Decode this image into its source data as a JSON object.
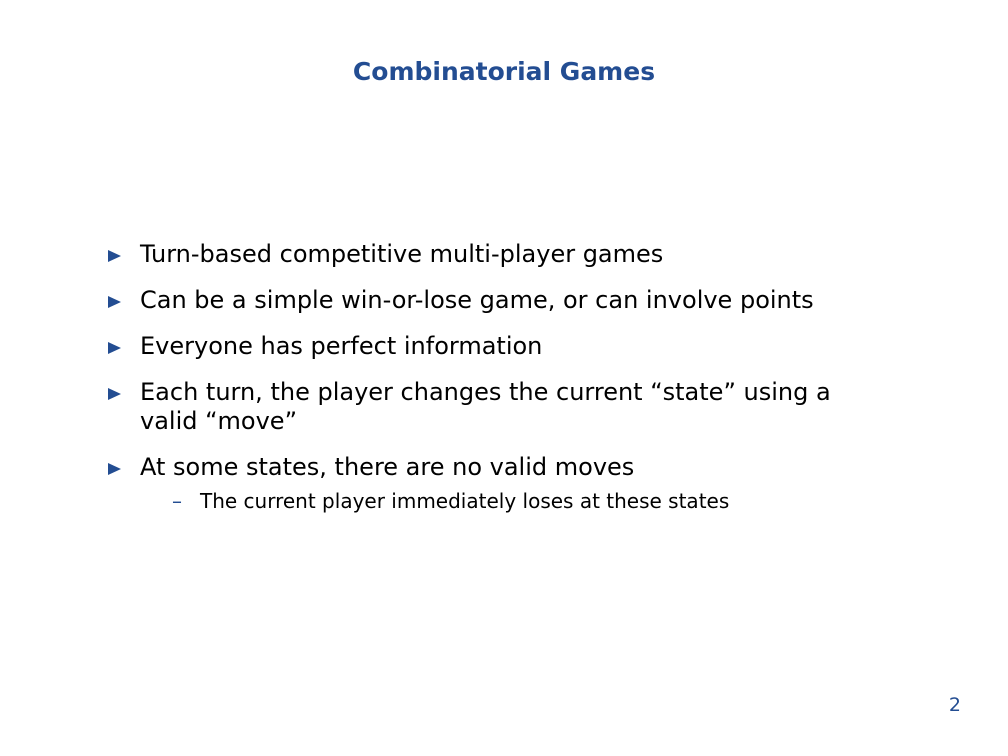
{
  "slide": {
    "title": "Combinatorial Games",
    "bullets": [
      {
        "text": "Turn-based competitive multi-player games"
      },
      {
        "text": "Can be a simple win-or-lose game, or can involve points"
      },
      {
        "text": "Everyone has perfect information"
      },
      {
        "text": "Each turn, the player changes the current “state” using a valid “move”"
      },
      {
        "text": "At some states, there are no valid moves",
        "sub": [
          {
            "marker": "–",
            "text": "The current player immediately loses at these states"
          }
        ]
      }
    ],
    "page_number": "2"
  },
  "colors": {
    "accent": "#234d92",
    "text": "#000000",
    "background": "#ffffff"
  },
  "icons": {
    "bullet": "triangle-right-icon"
  }
}
